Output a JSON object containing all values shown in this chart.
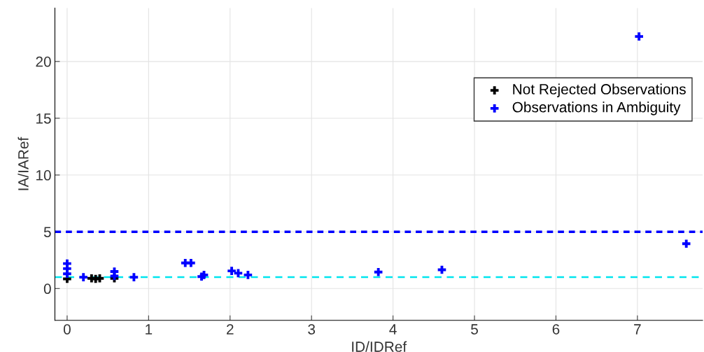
{
  "chart_data": {
    "type": "scatter",
    "xlabel": "ID/IDRef",
    "ylabel": "IA/IARef",
    "xlim": [
      -0.15,
      7.8
    ],
    "ylim": [
      -2.8,
      24.7
    ],
    "xticks": [
      0,
      1,
      2,
      3,
      4,
      5,
      6,
      7
    ],
    "yticks": [
      0,
      5,
      10,
      15,
      20
    ],
    "grid": true,
    "legend": "top right",
    "marker": "cross",
    "series": [
      {
        "name": "Not Rejected Observations",
        "color": "#000000",
        "x": [
          0,
          0.3,
          0.35,
          0.4,
          0.58
        ],
        "values": [
          0.85,
          0.9,
          0.85,
          0.9,
          0.9
        ]
      },
      {
        "name": "Observations in Ambiguity",
        "color": "#0000ff",
        "x": [
          0,
          0,
          0,
          0.2,
          0.58,
          0.58,
          0.82,
          1.45,
          1.52,
          1.65,
          1.68,
          2.02,
          2.1,
          2.22,
          3.82,
          4.6,
          7.02,
          7.6
        ],
        "values": [
          1.3,
          1.75,
          2.2,
          1.0,
          1.5,
          1.1,
          1.0,
          2.25,
          2.25,
          1.05,
          1.2,
          1.55,
          1.35,
          1.2,
          1.45,
          1.65,
          22.2,
          3.95
        ]
      }
    ],
    "ref_lines": [
      {
        "axis": "y",
        "value": 5,
        "color": "#0000ff",
        "line_style": "dotted"
      },
      {
        "axis": "y",
        "value": 1,
        "color": "#00e5ee",
        "line_style": "dashed"
      }
    ]
  }
}
